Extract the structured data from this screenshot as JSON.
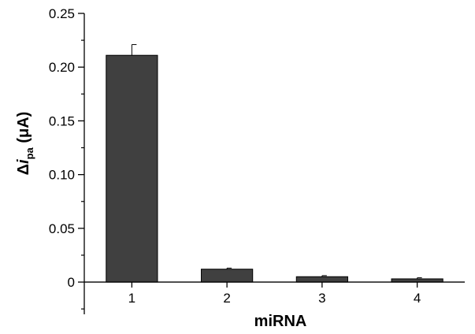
{
  "chart_data": {
    "type": "bar",
    "title": "",
    "xlabel": "miRNA",
    "ylabel": {
      "prefix": "Δ",
      "variable": "i",
      "subscript": "pa",
      "unit": " (μA)"
    },
    "categories": [
      "1",
      "2",
      "3",
      "4"
    ],
    "values": [
      0.211,
      0.012,
      0.005,
      0.003
    ],
    "errors": [
      0.01,
      0.001,
      0.001,
      0.001
    ],
    "ylim": [
      -0.03,
      0.25
    ],
    "yticks": [
      0,
      0.05,
      0.1,
      0.15,
      0.2,
      0.25
    ],
    "ytick_labels": [
      "0",
      "0.05",
      "0.10",
      "0.15",
      "0.20",
      "0.25"
    ],
    "bar_color": "#404040",
    "grid": false,
    "legend": "none"
  }
}
